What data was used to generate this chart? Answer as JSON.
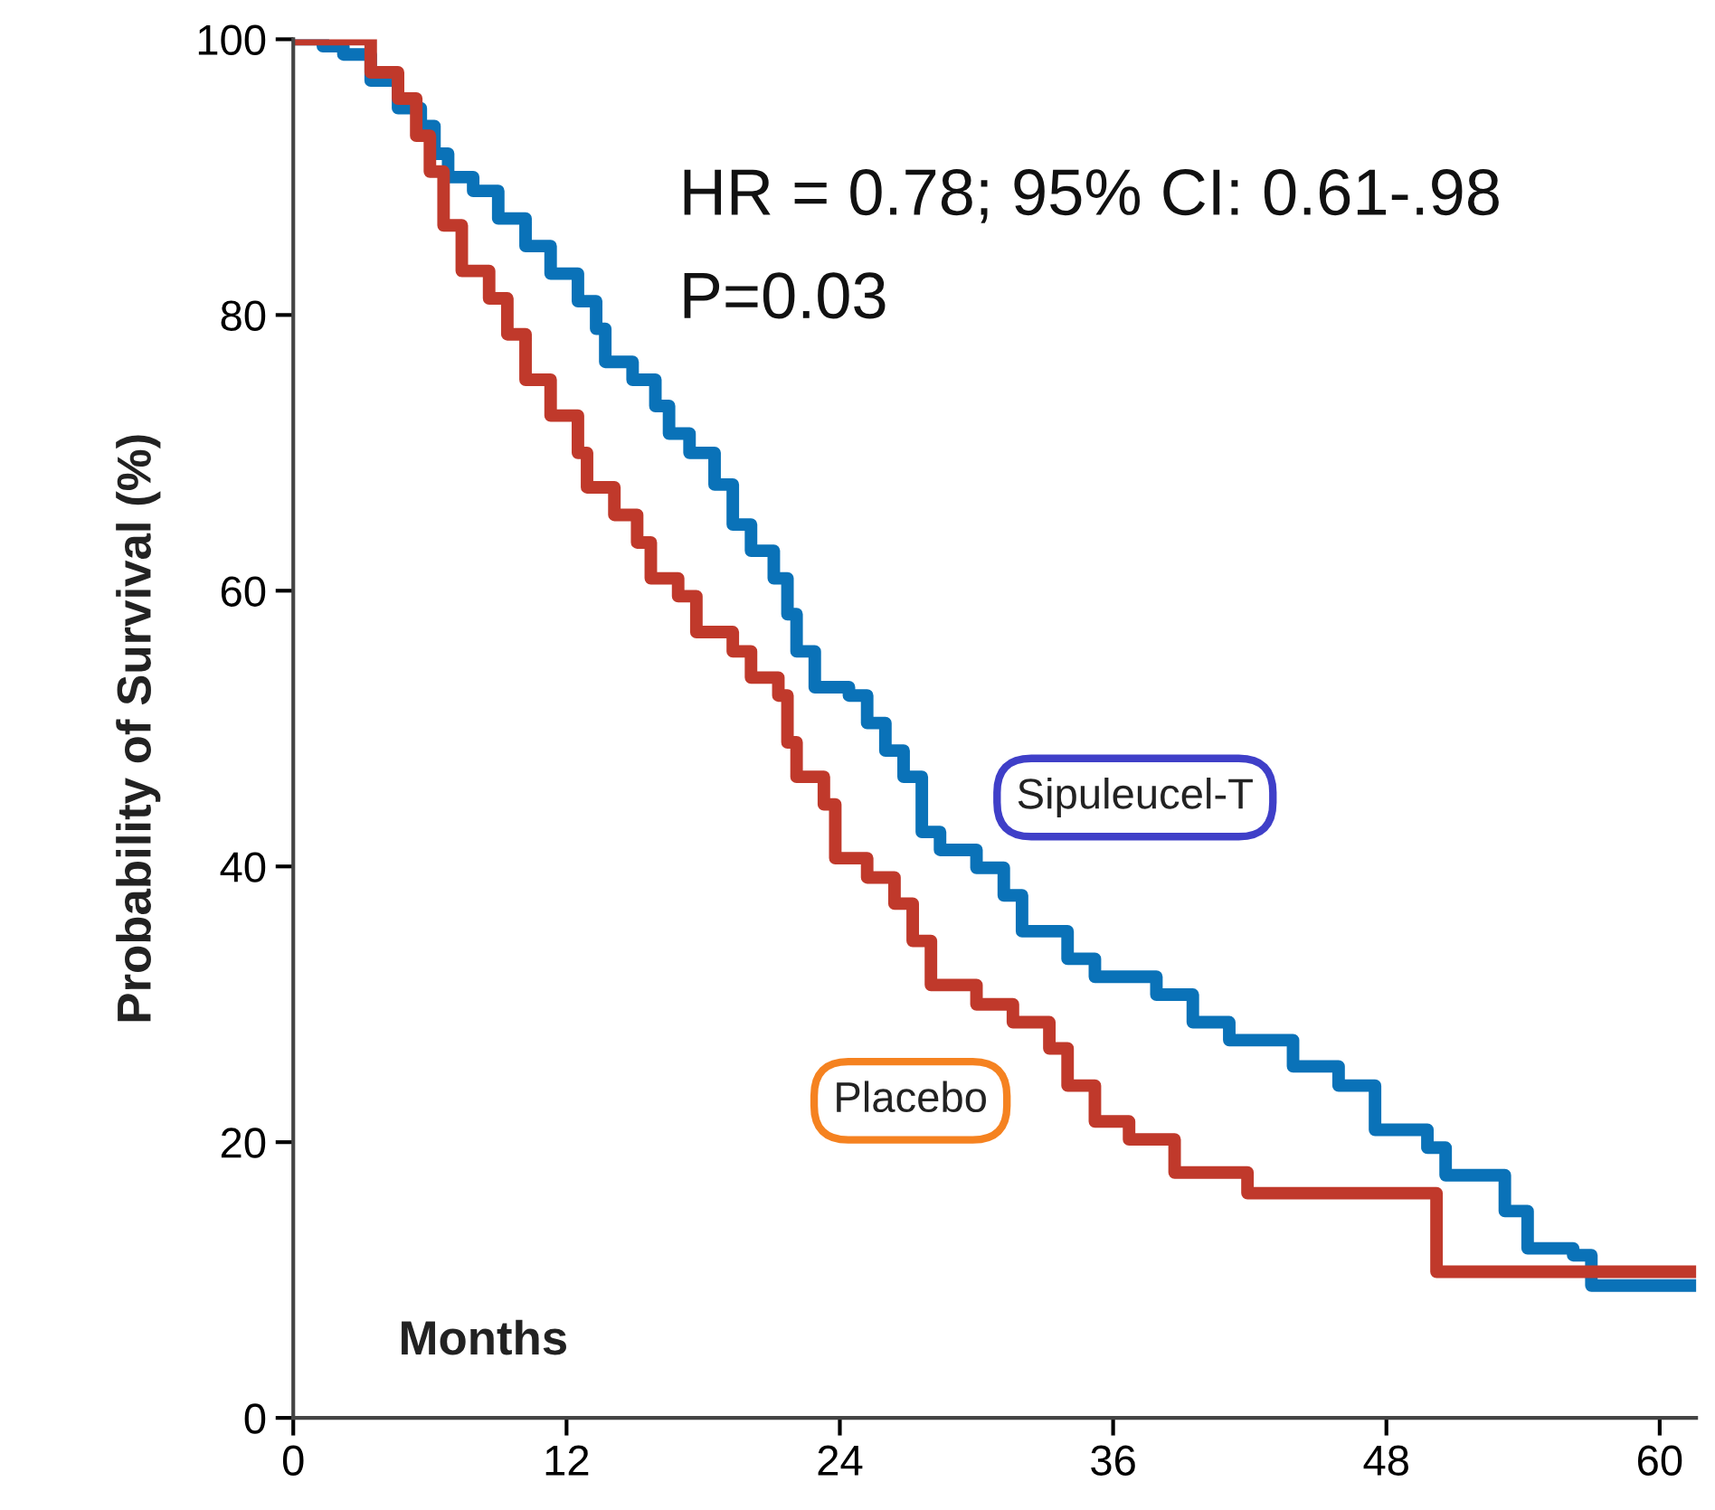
{
  "chart_data": {
    "type": "step",
    "xlabel": "Months",
    "ylabel": "Probability of Survival (%)",
    "annotations": [
      "HR = 0.78; 95% CI: 0.61-.98",
      "P=0.03"
    ],
    "xlim": [
      0,
      61.6
    ],
    "ylim": [
      0,
      100
    ],
    "xticks": [
      0,
      12,
      24,
      36,
      48,
      60
    ],
    "yticks": [
      0,
      20,
      40,
      60,
      80,
      100
    ],
    "grid": false,
    "legend": false,
    "marker": "none",
    "line_style": "solid",
    "series": [
      {
        "name": "Sipuleucel-T",
        "color": "#0a72b8",
        "x": [
          0,
          1.3,
          2.2,
          3.4,
          4.6,
          5.6,
          6.2,
          6.8,
          7.9,
          9,
          10.2,
          11.3,
          12.5,
          13.3,
          13.7,
          14.9,
          15.9,
          16.5,
          17.4,
          18.5,
          19.3,
          20.1,
          21.1,
          21.7,
          22.1,
          22.9,
          24.4,
          25.2,
          26,
          26.8,
          27.6,
          28.4,
          30,
          31.2,
          32,
          34,
          35.2,
          37.9,
          39.5,
          41.1,
          43.9,
          45.9,
          47.5,
          49.8,
          50.6,
          53.2,
          54.2,
          56.2,
          57,
          61.6
        ],
        "values": [
          100,
          99.5,
          98.9,
          97,
          95,
          93.7,
          91.7,
          90,
          89,
          87,
          85,
          83,
          81,
          79,
          76.6,
          75.3,
          73.4,
          71.4,
          70,
          67.7,
          64.8,
          62.9,
          60.9,
          58.3,
          55.6,
          53,
          52.4,
          50.4,
          48.4,
          46.5,
          42.5,
          41.2,
          39.9,
          37.9,
          35.3,
          33.3,
          32,
          30.7,
          28.7,
          27.4,
          25.5,
          24.1,
          20.9,
          19.6,
          17.6,
          15,
          12.3,
          11.8,
          9.6,
          9.6
        ]
      },
      {
        "name": "Placebo",
        "color": "#c0392b",
        "x": [
          0,
          3.4,
          4.6,
          5.4,
          6,
          6.6,
          7.4,
          8.6,
          9.4,
          10.2,
          11.3,
          12.5,
          12.9,
          14.1,
          15.1,
          15.7,
          16.9,
          17.7,
          19.3,
          20.1,
          21.3,
          21.7,
          22.1,
          23.3,
          23.8,
          25.2,
          26.4,
          27.2,
          28,
          30,
          31.6,
          33.2,
          34,
          35.2,
          36.7,
          38.7,
          41.9,
          50.2,
          61.6
        ],
        "values": [
          100,
          97.6,
          95.7,
          93,
          90.4,
          86.5,
          83.2,
          81.2,
          78.6,
          75.3,
          72.7,
          70,
          67.5,
          65.5,
          63.5,
          60.9,
          59.6,
          57,
          55.6,
          53.7,
          52.4,
          49,
          46.5,
          44.5,
          40.6,
          39.2,
          37.3,
          34.6,
          31.4,
          30,
          28.7,
          26.8,
          24.1,
          21.5,
          20.2,
          17.8,
          16.3,
          10.6,
          10.6
        ]
      }
    ]
  }
}
